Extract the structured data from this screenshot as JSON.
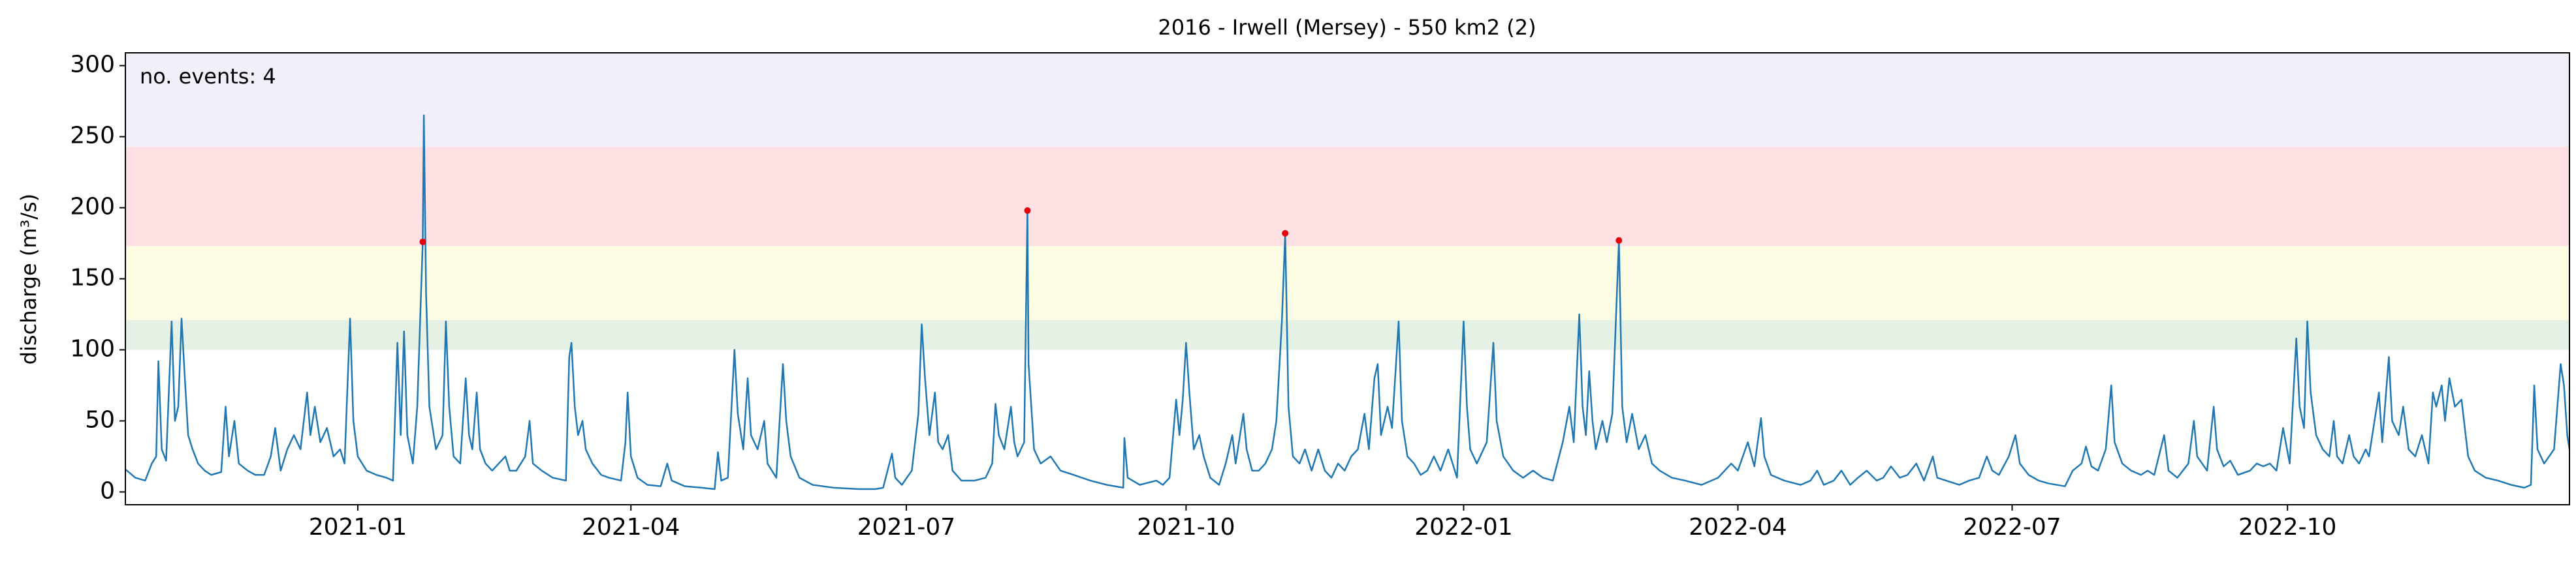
{
  "chart_data": {
    "type": "line",
    "title": "2016 - Irwell (Mersey) - 550 km2 (2)",
    "ylabel": "discharge (m³/s)",
    "annotation": "no. events: 4",
    "annotation_color": "#e8000b",
    "color": "#1f77b4",
    "xlim": [
      2020.789,
      2023.008
    ],
    "ylim": [
      -9,
      309
    ],
    "xticks": [
      {
        "value": 2021.0,
        "label": "2021-01"
      },
      {
        "value": 2021.248,
        "label": "2021-04"
      },
      {
        "value": 2021.498,
        "label": "2021-07"
      },
      {
        "value": 2021.752,
        "label": "2021-10"
      },
      {
        "value": 2022.004,
        "label": "2022-01"
      },
      {
        "value": 2022.253,
        "label": "2022-04"
      },
      {
        "value": 2022.502,
        "label": "2022-07"
      },
      {
        "value": 2022.752,
        "label": "2022-10"
      }
    ],
    "yticks": [
      0,
      50,
      100,
      150,
      200,
      250,
      300
    ],
    "bands": [
      {
        "lower": 100,
        "upper": 121,
        "color": "#e5f1e5"
      },
      {
        "lower": 121,
        "upper": 173,
        "color": "#fdfde3"
      },
      {
        "lower": 173,
        "upper": 243,
        "color": "#ffe1e4"
      },
      {
        "lower": 243,
        "upper": 309,
        "color": "#f2eefa"
      }
    ],
    "x": [
      2020.789,
      2020.798,
      2020.807,
      2020.813,
      2020.817,
      2020.819,
      2020.822,
      2020.826,
      2020.831,
      2020.834,
      2020.837,
      2020.84,
      2020.843,
      2020.846,
      2020.85,
      2020.855,
      2020.861,
      2020.867,
      2020.876,
      2020.88,
      2020.883,
      2020.888,
      2020.892,
      2020.9,
      2020.907,
      2020.915,
      2020.921,
      2020.925,
      2020.93,
      2020.936,
      2020.942,
      2020.948,
      2020.954,
      2020.957,
      2020.961,
      2020.966,
      2020.972,
      2020.978,
      2020.984,
      2020.988,
      2020.993,
      2020.996,
      2021.0,
      2021.008,
      2021.017,
      2021.026,
      2021.032,
      2021.036,
      2021.039,
      2021.042,
      2021.045,
      2021.05,
      2021.054,
      2021.059,
      2021.06,
      2021.062,
      2021.065,
      2021.071,
      2021.077,
      2021.08,
      2021.083,
      2021.087,
      2021.093,
      2021.098,
      2021.101,
      2021.104,
      2021.108,
      2021.111,
      2021.116,
      2021.122,
      2021.128,
      2021.134,
      2021.138,
      2021.144,
      2021.152,
      2021.156,
      2021.159,
      2021.167,
      2021.177,
      2021.189,
      2021.192,
      2021.194,
      2021.197,
      2021.2,
      2021.204,
      2021.207,
      2021.213,
      2021.221,
      2021.228,
      2021.239,
      2021.243,
      2021.245,
      2021.248,
      2021.254,
      2021.263,
      2021.275,
      2021.281,
      2021.285,
      2021.297,
      2021.312,
      2021.324,
      2021.327,
      2021.33,
      2021.336,
      2021.342,
      2021.345,
      2021.35,
      2021.354,
      2021.357,
      2021.363,
      2021.369,
      2021.372,
      2021.38,
      2021.386,
      2021.389,
      2021.393,
      2021.401,
      2021.413,
      2021.432,
      2021.455,
      2021.47,
      2021.477,
      2021.485,
      2021.488,
      2021.494,
      2021.503,
      2021.509,
      2021.512,
      2021.515,
      2021.519,
      2021.524,
      2021.527,
      2021.531,
      2021.536,
      2021.54,
      2021.548,
      2021.56,
      2021.57,
      2021.576,
      2021.579,
      2021.582,
      2021.587,
      2021.593,
      2021.596,
      2021.599,
      2021.605,
      2021.608,
      2021.609,
      2021.614,
      2021.62,
      2021.629,
      2021.638,
      2021.65,
      2021.665,
      2021.68,
      2021.695,
      2021.696,
      2021.699,
      2021.71,
      2021.725,
      2021.731,
      2021.737,
      2021.743,
      2021.746,
      2021.749,
      2021.752,
      2021.755,
      2021.759,
      2021.764,
      2021.768,
      2021.774,
      2021.782,
      2021.788,
      2021.794,
      2021.797,
      2021.804,
      2021.807,
      2021.812,
      2021.818,
      2021.824,
      2021.83,
      2021.834,
      2021.839,
      2021.842,
      2021.845,
      2021.849,
      2021.855,
      2021.86,
      2021.866,
      2021.872,
      2021.878,
      2021.884,
      2021.89,
      2021.896,
      2021.902,
      2021.908,
      2021.914,
      2021.918,
      2021.923,
      2021.926,
      2021.929,
      2021.935,
      2021.939,
      2021.945,
      2021.948,
      2021.953,
      2021.959,
      2021.965,
      2021.971,
      2021.977,
      2021.983,
      2021.99,
      2021.998,
      2022.004,
      2022.007,
      2022.01,
      2022.016,
      2022.025,
      2022.031,
      2022.034,
      2022.04,
      2022.049,
      2022.058,
      2022.067,
      2022.076,
      2022.085,
      2022.094,
      2022.1,
      2022.104,
      2022.109,
      2022.112,
      2022.115,
      2022.118,
      2022.121,
      2022.124,
      2022.13,
      2022.134,
      2022.139,
      2022.145,
      2022.148,
      2022.152,
      2022.157,
      2022.163,
      2022.169,
      2022.175,
      2022.182,
      2022.193,
      2022.205,
      2022.22,
      2022.235,
      2022.247,
      2022.253,
      2022.262,
      2022.268,
      2022.274,
      2022.277,
      2022.283,
      2022.295,
      2022.31,
      2022.319,
      2022.325,
      2022.331,
      2022.34,
      2022.347,
      2022.355,
      2022.362,
      2022.37,
      2022.379,
      2022.385,
      2022.392,
      2022.4,
      2022.407,
      2022.415,
      2022.422,
      2022.43,
      2022.434,
      2022.442,
      2022.454,
      2022.463,
      2022.472,
      2022.479,
      2022.484,
      2022.49,
      2022.499,
      2022.505,
      2022.509,
      2022.517,
      2022.526,
      2022.535,
      2022.55,
      2022.557,
      2022.565,
      2022.569,
      2022.574,
      2022.58,
      2022.587,
      2022.592,
      2022.595,
      2022.602,
      2022.61,
      2022.619,
      2022.625,
      2022.631,
      2022.64,
      2022.644,
      2022.652,
      2022.662,
      2022.667,
      2022.67,
      2022.679,
      2022.685,
      2022.688,
      2022.694,
      2022.7,
      2022.707,
      2022.718,
      2022.724,
      2022.73,
      2022.736,
      2022.742,
      2022.748,
      2022.754,
      2022.76,
      2022.763,
      2022.767,
      2022.77,
      2022.773,
      2022.778,
      2022.784,
      2022.79,
      2022.794,
      2022.797,
      2022.802,
      2022.808,
      2022.812,
      2022.817,
      2022.823,
      2022.826,
      2022.835,
      2022.838,
      2022.844,
      2022.847,
      2022.853,
      2022.857,
      2022.862,
      2022.868,
      2022.874,
      2022.88,
      2022.884,
      2022.887,
      2022.892,
      2022.895,
      2022.899,
      2022.904,
      2022.91,
      2022.916,
      2022.922,
      2022.932,
      2022.943,
      2022.955,
      2022.967,
      2022.973,
      2022.976,
      2022.979,
      2022.985,
      2022.994,
      2023.0,
      2023.003,
      2023.006,
      2023.008
    ],
    "values": [
      16,
      10,
      8,
      20,
      25,
      92,
      30,
      22,
      120,
      50,
      60,
      122,
      80,
      40,
      30,
      20,
      15,
      12,
      14,
      60,
      25,
      50,
      20,
      15,
      12,
      12,
      25,
      45,
      15,
      30,
      40,
      30,
      70,
      40,
      60,
      35,
      45,
      25,
      30,
      20,
      122,
      50,
      25,
      15,
      12,
      10,
      8,
      105,
      40,
      113,
      40,
      20,
      60,
      176,
      265,
      140,
      60,
      30,
      40,
      120,
      60,
      25,
      20,
      80,
      40,
      30,
      70,
      30,
      20,
      15,
      20,
      25,
      15,
      15,
      25,
      50,
      20,
      15,
      10,
      8,
      95,
      105,
      60,
      40,
      50,
      30,
      20,
      12,
      10,
      8,
      35,
      70,
      25,
      10,
      5,
      4,
      20,
      8,
      4,
      3,
      2,
      28,
      8,
      10,
      100,
      55,
      30,
      80,
      40,
      30,
      50,
      20,
      10,
      90,
      50,
      25,
      10,
      5,
      3,
      2,
      2,
      3,
      27,
      10,
      5,
      15,
      55,
      118,
      80,
      40,
      70,
      35,
      30,
      40,
      15,
      8,
      8,
      10,
      20,
      62,
      40,
      30,
      60,
      35,
      25,
      35,
      198,
      90,
      30,
      20,
      25,
      15,
      12,
      8,
      5,
      3,
      38,
      10,
      5,
      8,
      5,
      10,
      65,
      40,
      65,
      105,
      70,
      30,
      40,
      25,
      10,
      5,
      20,
      40,
      20,
      55,
      30,
      15,
      15,
      20,
      30,
      50,
      120,
      182,
      60,
      25,
      20,
      30,
      15,
      30,
      15,
      10,
      20,
      15,
      25,
      30,
      55,
      30,
      80,
      90,
      40,
      60,
      45,
      120,
      50,
      25,
      20,
      12,
      15,
      25,
      15,
      30,
      10,
      120,
      60,
      30,
      20,
      35,
      105,
      50,
      25,
      15,
      10,
      15,
      10,
      8,
      35,
      60,
      35,
      125,
      60,
      40,
      85,
      50,
      30,
      50,
      35,
      55,
      177,
      60,
      35,
      55,
      30,
      40,
      20,
      15,
      10,
      8,
      5,
      10,
      20,
      15,
      35,
      18,
      52,
      25,
      12,
      8,
      5,
      8,
      15,
      5,
      8,
      15,
      5,
      10,
      15,
      8,
      10,
      18,
      10,
      12,
      20,
      8,
      25,
      10,
      8,
      5,
      8,
      10,
      25,
      15,
      12,
      25,
      40,
      20,
      12,
      8,
      6,
      4,
      15,
      20,
      32,
      18,
      15,
      30,
      75,
      35,
      20,
      15,
      12,
      15,
      12,
      40,
      15,
      10,
      20,
      50,
      25,
      15,
      60,
      30,
      18,
      22,
      12,
      15,
      20,
      18,
      20,
      15,
      45,
      20,
      108,
      60,
      45,
      120,
      70,
      40,
      30,
      25,
      50,
      25,
      20,
      40,
      25,
      20,
      30,
      25,
      70,
      35,
      95,
      50,
      40,
      60,
      30,
      25,
      40,
      20,
      70,
      60,
      75,
      50,
      80,
      60,
      65,
      25,
      15,
      10,
      8,
      5,
      3,
      5,
      75,
      30,
      20,
      30,
      90,
      75,
      40,
      30
    ],
    "events": {
      "color": "#e8000b",
      "x": [
        2021.059,
        2021.608,
        2021.842,
        2022.145
      ],
      "values": [
        176,
        198,
        182,
        177
      ]
    }
  }
}
